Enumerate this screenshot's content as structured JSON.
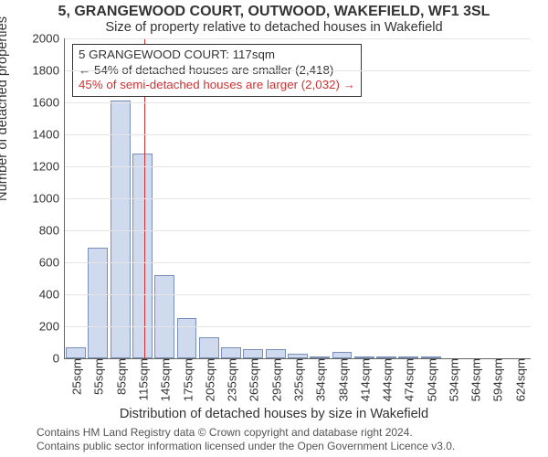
{
  "title_line1": "5, GRANGEWOOD COURT, OUTWOOD, WAKEFIELD, WF1 3SL",
  "title_line2": "Size of property relative to detached houses in Wakefield",
  "y_axis_label": "Number of detached properties",
  "x_axis_label": "Distribution of detached houses by size in Wakefield",
  "footer_line1": "Contains HM Land Registry data © Crown copyright and database right 2024.",
  "footer_line2": "Contains public sector information licensed under the Open Government Licence v3.0.",
  "annotation": {
    "line1": "5 GRANGEWOOD COURT: 117sqm",
    "line2": "← 54% of detached houses are smaller (2,418)",
    "line3": "45% of semi-detached houses are larger (2,032) →"
  },
  "chart": {
    "type": "histogram",
    "ylim": [
      0,
      2000
    ],
    "ytick_step": 200,
    "bar_fill": "#cfdaee",
    "bar_stroke": "#7a8fb8",
    "grid_color": "#e5e5e5",
    "marker_color": "#cc3333",
    "marker_x_value": 117,
    "x_range": [
      10,
      640
    ],
    "x_tick_labels": [
      "25sqm",
      "55sqm",
      "85sqm",
      "115sqm",
      "145sqm",
      "175sqm",
      "205sqm",
      "235sqm",
      "265sqm",
      "295sqm",
      "325sqm",
      "354sqm",
      "384sqm",
      "414sqm",
      "444sqm",
      "474sqm",
      "504sqm",
      "534sqm",
      "564sqm",
      "594sqm",
      "624sqm"
    ],
    "bars": [
      70,
      690,
      1610,
      1280,
      520,
      250,
      130,
      70,
      60,
      60,
      30,
      10,
      40,
      10,
      5,
      5,
      5,
      0,
      0,
      0,
      0
    ]
  },
  "fonts": {
    "title_size_pt": 12,
    "subtitle_size_pt": 11,
    "axis_label_size_pt": 11,
    "tick_size_pt": 10,
    "annot_size_pt": 10,
    "footer_size_pt": 9
  }
}
